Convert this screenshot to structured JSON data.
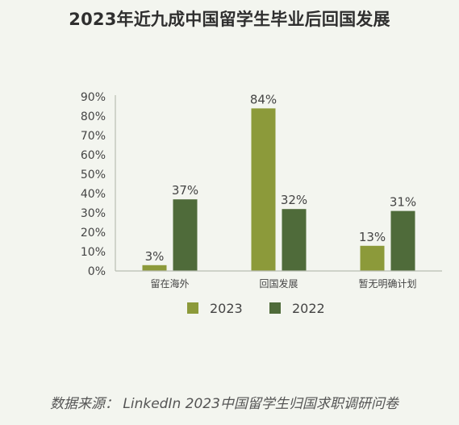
{
  "title": "2023年近九成中国留学生毕业后回国发展",
  "source_text": "数据来源： LinkedIn 2023中国留学生归国求职调研问卷",
  "colors": {
    "series_2023": "#8c9a3a",
    "series_2022": "#4f6b3a",
    "axis": "#b9bdb2",
    "text": "#444444"
  },
  "chart_data": {
    "type": "bar",
    "categories": [
      "留在海外",
      "回国发展",
      "暂无明确计划"
    ],
    "series": [
      {
        "name": "2023",
        "values": [
          3,
          84,
          13
        ],
        "labels": [
          "3%",
          "84%",
          "13%"
        ]
      },
      {
        "name": "2022",
        "values": [
          37,
          32,
          31
        ],
        "labels": [
          "37%",
          "32%",
          "31%"
        ]
      }
    ],
    "ylim": [
      0,
      90
    ],
    "yticks": [
      0,
      10,
      20,
      30,
      40,
      50,
      60,
      70,
      80,
      90
    ],
    "ytick_labels": [
      "0%",
      "10%",
      "20%",
      "30%",
      "40%",
      "50%",
      "60%",
      "70%",
      "80%",
      "90%"
    ],
    "grid": false,
    "legend_position": "bottom-center"
  }
}
